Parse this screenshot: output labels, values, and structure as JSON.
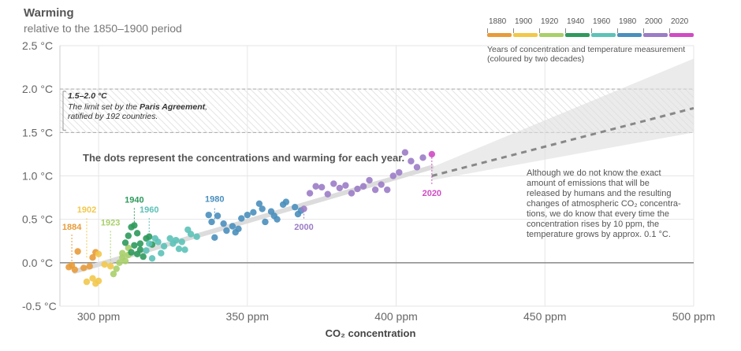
{
  "header": {
    "title": "Warming",
    "subtitle": "relative to the 1850–1900 period"
  },
  "legend": {
    "items": [
      {
        "year": "1880",
        "color": "#E89B3A"
      },
      {
        "year": "1900",
        "color": "#F2C84B"
      },
      {
        "year": "1920",
        "color": "#A9CF6A"
      },
      {
        "year": "1940",
        "color": "#2E9A5C"
      },
      {
        "year": "1960",
        "color": "#5CC2B8"
      },
      {
        "year": "1980",
        "color": "#4A8FBD"
      },
      {
        "year": "2000",
        "color": "#9B7CC6"
      },
      {
        "year": "2020",
        "color": "#D04BC4"
      }
    ],
    "note_line1": "Years of concentration and temperature measurement",
    "note_line2": "(coloured by two decades)"
  },
  "annotations": {
    "paris_head": "1.5–2.0 °C",
    "paris_desc_pre": "The limit set by the ",
    "paris_desc_bold": "Paris Agreement",
    "paris_desc_post": ",",
    "paris_desc_line2": "ratified by 192 countries.",
    "dots_note": "The dots represent the concentrations and warming for each year.",
    "side_note_lines": [
      "Although we do not know the exact",
      "amount of emissions that will be",
      "released by humans and the resulting",
      "changes of atmospheric CO₂ concentra-",
      "tions, we do know that every time the",
      "concentration rises by 10 ppm, the",
      "temperature grows by approx. 0.1 °C."
    ]
  },
  "chart_data": {
    "type": "scatter",
    "xlabel": "CO₂ concentration",
    "ylabel": "",
    "xlim": [
      287,
      500
    ],
    "ylim": [
      -0.5,
      2.5
    ],
    "x_ticks": [
      300,
      350,
      400,
      450,
      500
    ],
    "x_tick_labels": [
      "300 ppm",
      "350 ppm",
      "400 ppm",
      "450 ppm",
      "500 ppm"
    ],
    "y_ticks": [
      -0.5,
      0.0,
      0.5,
      1.0,
      1.5,
      2.0,
      2.5
    ],
    "y_tick_labels": [
      "-0.5 °C",
      "0.0 °C",
      "0.5 °C",
      "1.0 °C",
      "1.5 °C",
      "2.0 °C",
      "2.5 °C"
    ],
    "paris_band": [
      1.5,
      2.0
    ],
    "trend_line": {
      "x": [
        292,
        412
      ],
      "y": [
        -0.1,
        1.1
      ]
    },
    "projection_line": {
      "x": [
        412,
        500
      ],
      "y": [
        1.0,
        1.78
      ]
    },
    "projection_band": {
      "x": [
        412,
        500
      ],
      "lower": [
        0.95,
        1.5
      ],
      "upper": [
        1.1,
        2.35
      ]
    },
    "year_labels": [
      {
        "text": "1884",
        "x": 291,
        "y": -0.02,
        "label_y": 0.38,
        "color": "#E89B3A"
      },
      {
        "text": "1902",
        "x": 296,
        "y": 0.06,
        "label_y": 0.58,
        "color": "#F2C84B"
      },
      {
        "text": "1923",
        "x": 304,
        "y": -0.05,
        "label_y": 0.43,
        "color": "#A9CF6A"
      },
      {
        "text": "1940",
        "x": 312,
        "y": 0.43,
        "label_y": 0.69,
        "color": "#2E9A5C"
      },
      {
        "text": "1960",
        "x": 317,
        "y": 0.28,
        "label_y": 0.58,
        "color": "#5CC2B8"
      },
      {
        "text": "1980",
        "x": 339,
        "y": 0.5,
        "label_y": 0.7,
        "color": "#4A8FBD"
      },
      {
        "text": "2000",
        "x": 369,
        "y": 0.6,
        "label_y": 0.38,
        "color": "#9B7CC6"
      },
      {
        "text": "2020",
        "x": 412,
        "y": 1.25,
        "label_y": 0.77,
        "color": "#D04BC4"
      }
    ],
    "series": [
      {
        "color": "#E89B3A",
        "points": [
          [
            290,
            -0.05
          ],
          [
            291,
            -0.03
          ],
          [
            292,
            -0.08
          ],
          [
            293,
            0.13
          ],
          [
            295,
            -0.06
          ],
          [
            297,
            -0.04
          ],
          [
            298,
            0.06
          ],
          [
            299,
            0.12
          ]
        ]
      },
      {
        "color": "#F2C84B",
        "points": [
          [
            296,
            -0.22
          ],
          [
            298,
            -0.18
          ],
          [
            299,
            -0.24
          ],
          [
            300,
            0.1
          ],
          [
            300,
            -0.21
          ],
          [
            302,
            -0.02
          ],
          [
            304,
            -0.04
          ]
        ]
      },
      {
        "color": "#A9CF6A",
        "points": [
          [
            305,
            -0.13
          ],
          [
            306,
            -0.07
          ],
          [
            307,
            0.0
          ],
          [
            308,
            0.06
          ],
          [
            308,
            0.11
          ],
          [
            309,
            0.02
          ],
          [
            310,
            0.09
          ],
          [
            310,
            0.17
          ]
        ]
      },
      {
        "color": "#2E9A5C",
        "points": [
          [
            309,
            0.23
          ],
          [
            310,
            0.31
          ],
          [
            311,
            0.41
          ],
          [
            311,
            0.12
          ],
          [
            312,
            0.2
          ],
          [
            312,
            0.43
          ],
          [
            313,
            0.1
          ],
          [
            313,
            0.34
          ],
          [
            314,
            0.15
          ],
          [
            314,
            0.22
          ],
          [
            315,
            0.07
          ],
          [
            316,
            0.28
          ],
          [
            317,
            0.3
          ],
          [
            318,
            0.21
          ]
        ]
      },
      {
        "color": "#5CC2B8",
        "points": [
          [
            316,
            0.14
          ],
          [
            317,
            0.22
          ],
          [
            318,
            0.05
          ],
          [
            319,
            0.28
          ],
          [
            320,
            0.24
          ],
          [
            321,
            0.11
          ],
          [
            322,
            0.19
          ],
          [
            324,
            0.28
          ],
          [
            325,
            0.22
          ],
          [
            326,
            0.26
          ],
          [
            327,
            0.16
          ],
          [
            328,
            0.24
          ],
          [
            329,
            0.15
          ],
          [
            330,
            0.38
          ],
          [
            331,
            0.33
          ],
          [
            333,
            0.3
          ]
        ]
      },
      {
        "color": "#4A8FBD",
        "points": [
          [
            337,
            0.55
          ],
          [
            338,
            0.47
          ],
          [
            339,
            0.29
          ],
          [
            340,
            0.54
          ],
          [
            342,
            0.45
          ],
          [
            343,
            0.37
          ],
          [
            345,
            0.42
          ],
          [
            346,
            0.35
          ],
          [
            347,
            0.39
          ],
          [
            348,
            0.51
          ],
          [
            350,
            0.55
          ],
          [
            352,
            0.58
          ],
          [
            354,
            0.68
          ],
          [
            355,
            0.62
          ],
          [
            356,
            0.47
          ],
          [
            358,
            0.59
          ],
          [
            359,
            0.54
          ],
          [
            360,
            0.5
          ],
          [
            362,
            0.67
          ],
          [
            363,
            0.7
          ],
          [
            366,
            0.64
          ],
          [
            367,
            0.56
          ],
          [
            368,
            0.6
          ]
        ]
      },
      {
        "color": "#9B7CC6",
        "points": [
          [
            369,
            0.62
          ],
          [
            371,
            0.8
          ],
          [
            373,
            0.88
          ],
          [
            375,
            0.87
          ],
          [
            377,
            0.79
          ],
          [
            379,
            0.91
          ],
          [
            381,
            0.86
          ],
          [
            383,
            0.89
          ],
          [
            385,
            0.8
          ],
          [
            387,
            0.85
          ],
          [
            389,
            0.88
          ],
          [
            391,
            0.95
          ],
          [
            393,
            0.84
          ],
          [
            395,
            0.9
          ],
          [
            397,
            0.84
          ],
          [
            399,
            1.0
          ],
          [
            401,
            1.04
          ],
          [
            403,
            1.27
          ],
          [
            405,
            1.17
          ],
          [
            407,
            1.1
          ],
          [
            409,
            1.21
          ]
        ]
      },
      {
        "color": "#D04BC4",
        "points": [
          [
            412,
            1.25
          ]
        ]
      }
    ]
  }
}
